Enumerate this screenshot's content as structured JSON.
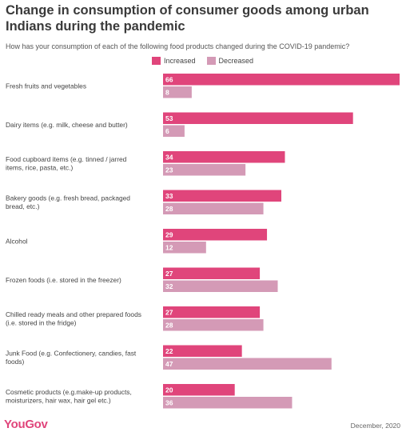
{
  "title": "Change in consumption of consumer goods among urban Indians during the pandemic",
  "subtitle": "How has your consumption of each of the following food products changed during the COVID-19 pandemic?",
  "footer": {
    "logo": "YouGov",
    "date": "December, 2020"
  },
  "colors": {
    "increased": "#e0457b",
    "decreased": "#d49ab6",
    "label": "#444444",
    "value": "#ffffff"
  },
  "chart_data": {
    "type": "bar",
    "orientation": "horizontal",
    "legend_position": "top",
    "grid": false,
    "xlim": [
      0,
      66
    ],
    "categories": [
      [
        "Fresh fruits and vegetables"
      ],
      [
        "Dairy items (e.g. milk, cheese and butter)"
      ],
      [
        "Food cupboard items (e.g. tinned / jarred",
        "items, rice, pasta, etc.)"
      ],
      [
        "Bakery goods (e.g. fresh bread, packaged",
        "bread, etc.)"
      ],
      [
        "Alcohol"
      ],
      [
        "Frozen foods (i.e. stored in the freezer)"
      ],
      [
        "Chilled ready meals and other prepared foods",
        "(i.e. stored in the fridge)"
      ],
      [
        "Junk Food (e.g. Confectionery, candies, fast",
        "foods)"
      ],
      [
        "Cosmetic products (e.g.make-up products,",
        "moisturizers, hair wax, hair gel etc.)"
      ]
    ],
    "series": [
      {
        "name": "Increased",
        "values": [
          66,
          53,
          34,
          33,
          29,
          27,
          27,
          22,
          20
        ]
      },
      {
        "name": "Decreased",
        "values": [
          8,
          6,
          23,
          28,
          12,
          32,
          28,
          47,
          36
        ]
      }
    ]
  }
}
